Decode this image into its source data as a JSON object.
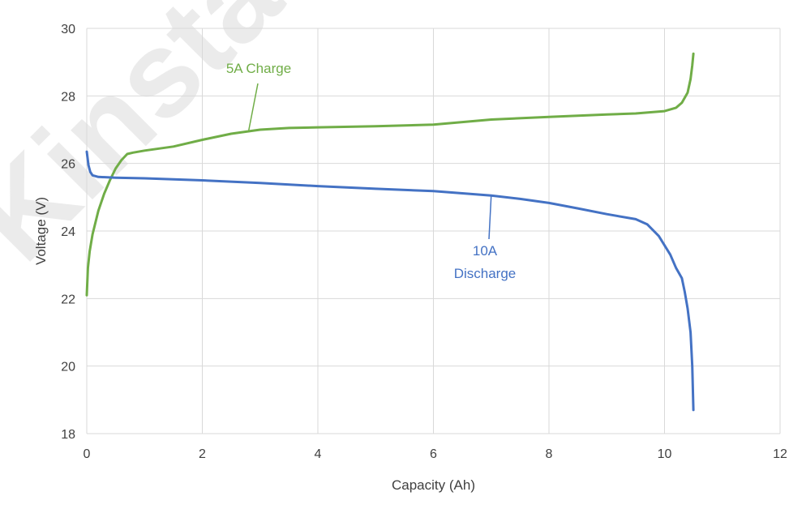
{
  "watermark": "Kinstar",
  "chart_data": {
    "type": "line",
    "title": "",
    "xlabel": "Capacity (Ah)",
    "ylabel": "Voltage (V)",
    "xlim": [
      0,
      12
    ],
    "ylim": [
      18,
      30
    ],
    "xticks": [
      0,
      2,
      4,
      6,
      8,
      10,
      12
    ],
    "yticks": [
      18,
      20,
      22,
      24,
      26,
      28,
      30
    ],
    "grid": true,
    "legend": "none",
    "series": [
      {
        "name": "5A Charge",
        "color": "#70ad47",
        "x": [
          0.0,
          0.02,
          0.05,
          0.1,
          0.2,
          0.3,
          0.4,
          0.5,
          0.6,
          0.7,
          0.8,
          1.0,
          1.5,
          2.0,
          2.5,
          3.0,
          3.5,
          4.0,
          5.0,
          6.0,
          7.0,
          8.0,
          9.0,
          9.5,
          10.0,
          10.2,
          10.3,
          10.4,
          10.45,
          10.48,
          10.5
        ],
        "y": [
          22.1,
          22.9,
          23.4,
          23.9,
          24.6,
          25.1,
          25.5,
          25.85,
          26.1,
          26.28,
          26.32,
          26.38,
          26.5,
          26.7,
          26.88,
          27.0,
          27.05,
          27.07,
          27.1,
          27.15,
          27.3,
          27.38,
          27.45,
          27.48,
          27.55,
          27.65,
          27.8,
          28.1,
          28.5,
          28.9,
          29.25
        ]
      },
      {
        "name": "10A Discharge",
        "color": "#4472c4",
        "x": [
          0.0,
          0.03,
          0.06,
          0.1,
          0.2,
          0.5,
          1.0,
          2.0,
          3.0,
          4.0,
          5.0,
          6.0,
          7.0,
          7.5,
          8.0,
          8.5,
          9.0,
          9.5,
          9.7,
          9.9,
          10.1,
          10.2,
          10.3,
          10.35,
          10.4,
          10.45,
          10.48,
          10.5
        ],
        "y": [
          26.35,
          25.95,
          25.75,
          25.65,
          25.6,
          25.58,
          25.56,
          25.5,
          25.42,
          25.33,
          25.25,
          25.18,
          25.05,
          24.95,
          24.83,
          24.67,
          24.5,
          24.35,
          24.2,
          23.85,
          23.3,
          22.9,
          22.6,
          22.2,
          21.7,
          21.0,
          20.0,
          18.7
        ]
      }
    ],
    "annotations": [
      {
        "label": "5A Charge",
        "series": 0,
        "anchor_x": 2.8,
        "anchor_y": 26.95
      },
      {
        "label": "10A",
        "series": 1,
        "anchor_x": 7.0,
        "anchor_y": 25.05
      },
      {
        "label": "Discharge",
        "series": 1
      }
    ]
  }
}
